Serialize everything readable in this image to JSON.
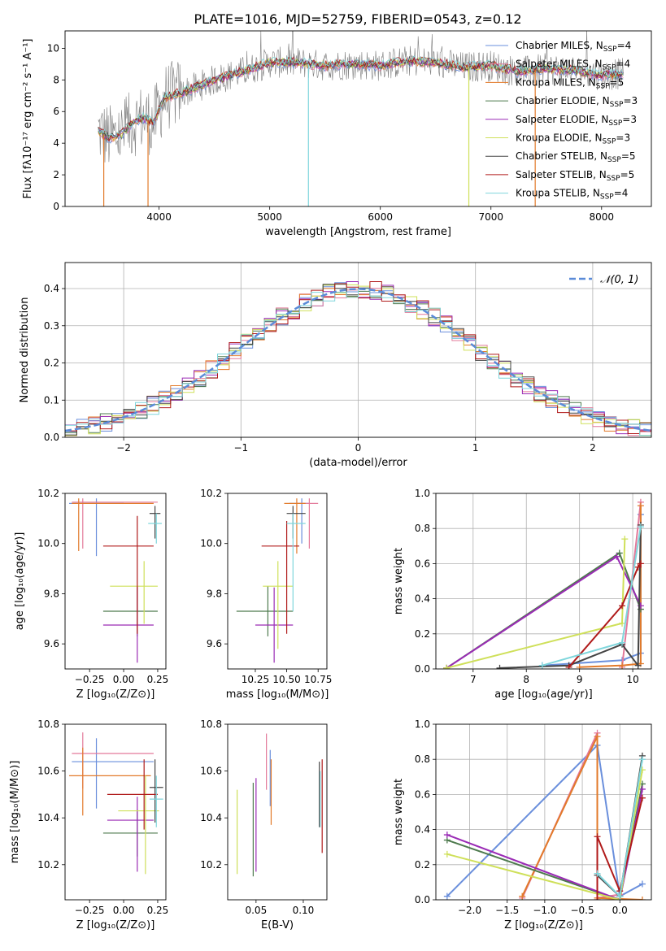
{
  "figure_title": "PLATE=1016, MJD=52759, FIBERID=0543, z=0.12",
  "colors": {
    "Chabrier MILES": "#6a8fdc",
    "Salpeter MILES": "#e3799a",
    "Kroupa MILES": "#e27a2a",
    "Chabrier ELODIE": "#4e7a4e",
    "Salpeter ELODIE": "#9a2bb5",
    "Kroupa ELODIE": "#cfe05a",
    "Chabrier STELIB": "#444444",
    "Salpeter STELIB": "#b01a1a",
    "Kroupa STELIB": "#7fd6dc",
    "data": "#7f7f7f",
    "normal": "#5b8bd8"
  },
  "chart_data": [
    {
      "id": "spectrum",
      "type": "line",
      "title": "PLATE=1016, MJD=52759, FIBERID=0543, z=0.12",
      "xlabel": "wavelength [Angstrom, rest frame]",
      "ylabel": "Flux [fλ10⁻¹⁷ erg cm⁻² s⁻¹ A⁻¹]",
      "xlim": [
        3150,
        8450
      ],
      "ylim": [
        0,
        11.1
      ],
      "xticks": [
        4000,
        5000,
        6000,
        7000,
        8000
      ],
      "yticks": [
        0,
        2,
        4,
        6,
        8,
        10
      ],
      "grid": false,
      "legend": "upper-right",
      "legend_entries": [
        {
          "main": "Chabrier MILES, N",
          "sub": "SSP",
          "tail": "=4"
        },
        {
          "main": "Salpeter MILES, N",
          "sub": "SSP",
          "tail": "=4"
        },
        {
          "main": "Kroupa MILES, N",
          "sub": "SSP",
          "tail": "=5"
        },
        {
          "main": "Chabrier ELODIE, N",
          "sub": "SSP",
          "tail": "=3"
        },
        {
          "main": "Salpeter ELODIE, N",
          "sub": "SSP",
          "tail": "=3"
        },
        {
          "main": "Kroupa ELODIE, N",
          "sub": "SSP",
          "tail": "=3"
        },
        {
          "main": "Chabrier STELIB, N",
          "sub": "SSP",
          "tail": "=5"
        },
        {
          "main": "Salpeter STELIB, N",
          "sub": "SSP",
          "tail": "=5"
        },
        {
          "main": "Kroupa STELIB, N",
          "sub": "SSP",
          "tail": "=4"
        }
      ],
      "continuum": {
        "x": [
          3450,
          3550,
          3650,
          3750,
          3850,
          3950,
          4050,
          4250,
          4500,
          4750,
          5000,
          5250,
          5500,
          5750,
          6000,
          6250,
          6500,
          6750,
          7000,
          7250,
          7500,
          7750,
          8000,
          8200
        ],
        "y": [
          4.8,
          4.3,
          4.5,
          5.2,
          5.6,
          5.3,
          6.9,
          7.3,
          8.0,
          8.5,
          9.1,
          9.1,
          8.9,
          9.0,
          8.9,
          9.2,
          9.1,
          8.8,
          8.9,
          8.5,
          8.7,
          8.6,
          8.3,
          8.4
        ]
      }
    },
    {
      "id": "residuals",
      "type": "histogram",
      "xlabel": "(data-model)/error",
      "ylabel": "Normed distribution",
      "xlim": [
        -2.5,
        2.5
      ],
      "ylim": [
        0,
        0.47
      ],
      "xticks": [
        -2,
        -1,
        0,
        1,
        2
      ],
      "yticks": [
        0.0,
        0.1,
        0.2,
        0.3,
        0.4
      ],
      "grid": true,
      "legend": "upper-right",
      "normal_label": "𝒩(0, 1)",
      "bin_width": 0.1
    },
    {
      "id": "age-vs-Z",
      "type": "errorbar",
      "xlabel": "Z [log₁₀(Z/Z⊙)]",
      "ylabel": "age  [log₁₀(age/yr)]",
      "xlim": [
        -0.43,
        0.31
      ],
      "ylim": [
        9.5,
        10.2
      ],
      "xticks": [
        -0.25,
        0.0,
        0.25
      ],
      "yticks": [
        9.6,
        9.8,
        10.0,
        10.2
      ],
      "points": [
        {
          "model": "Chabrier MILES",
          "x": -0.2,
          "xerr": [
            0.2,
            0.2
          ],
          "y": 10.16,
          "yerr": [
            0.21,
            0.02
          ]
        },
        {
          "model": "Salpeter MILES",
          "x": -0.3,
          "xerr": [
            0.08,
            0.55
          ],
          "y": 10.165,
          "yerr": [
            0.185,
            0.015
          ]
        },
        {
          "model": "Kroupa MILES",
          "x": -0.33,
          "xerr": [
            0.05,
            0.55
          ],
          "y": 10.16,
          "yerr": [
            0.19,
            0.02
          ]
        },
        {
          "model": "Chabrier ELODIE",
          "x": 0.1,
          "xerr": [
            0.25,
            0.15
          ],
          "y": 9.73,
          "yerr": [
            0.1,
            0.1
          ]
        },
        {
          "model": "Salpeter ELODIE",
          "x": 0.1,
          "xerr": [
            0.25,
            0.12
          ],
          "y": 9.675,
          "yerr": [
            0.15,
            0.15
          ]
        },
        {
          "model": "Kroupa ELODIE",
          "x": 0.15,
          "xerr": [
            0.25,
            0.1
          ],
          "y": 9.83,
          "yerr": [
            0.15,
            0.1
          ]
        },
        {
          "model": "Chabrier STELIB",
          "x": 0.23,
          "xerr": [
            0.04,
            0.04
          ],
          "y": 10.12,
          "yerr": [
            0.1,
            0.03
          ]
        },
        {
          "model": "Salpeter STELIB",
          "x": 0.1,
          "xerr": [
            0.25,
            0.12
          ],
          "y": 9.99,
          "yerr": [
            0.35,
            0.12
          ]
        },
        {
          "model": "Kroupa STELIB",
          "x": 0.24,
          "xerr": [
            0.06,
            0.04
          ],
          "y": 10.08,
          "yerr": [
            0.08,
            0.04
          ]
        }
      ]
    },
    {
      "id": "age-vs-mass",
      "type": "errorbar",
      "xlabel": "mass [log₁₀(M/M⊙)]",
      "ylabel": "",
      "xlim": [
        10.03,
        10.82
      ],
      "ylim": [
        9.5,
        10.2
      ],
      "xticks": [
        10.25,
        10.5,
        10.75
      ],
      "yticks": [
        9.6,
        9.8,
        10.0,
        10.2
      ],
      "points": [
        {
          "model": "Chabrier MILES",
          "x": 10.62,
          "xerr": [
            0.1,
            0.06
          ],
          "y": 10.16,
          "yerr": [
            0.16,
            0.02
          ]
        },
        {
          "model": "Salpeter MILES",
          "x": 10.68,
          "xerr": [
            0.1,
            0.07
          ],
          "y": 10.16,
          "yerr": [
            0.18,
            0.02
          ]
        },
        {
          "model": "Kroupa MILES",
          "x": 10.58,
          "xerr": [
            0.1,
            0.07
          ],
          "y": 10.16,
          "yerr": [
            0.2,
            0.02
          ]
        },
        {
          "model": "Chabrier ELODIE",
          "x": 10.35,
          "xerr": [
            0.25,
            0.2
          ],
          "y": 9.73,
          "yerr": [
            0.1,
            0.1
          ]
        },
        {
          "model": "Salpeter ELODIE",
          "x": 10.4,
          "xerr": [
            0.15,
            0.15
          ],
          "y": 9.675,
          "yerr": [
            0.15,
            0.15
          ]
        },
        {
          "model": "Kroupa ELODIE",
          "x": 10.43,
          "xerr": [
            0.12,
            0.12
          ],
          "y": 9.83,
          "yerr": [
            0.25,
            0.1
          ]
        },
        {
          "model": "Chabrier STELIB",
          "x": 10.55,
          "xerr": [
            0.05,
            0.1
          ],
          "y": 10.12,
          "yerr": [
            0.1,
            0.03
          ]
        },
        {
          "model": "Salpeter STELIB",
          "x": 10.5,
          "xerr": [
            0.2,
            0.1
          ],
          "y": 9.99,
          "yerr": [
            0.35,
            0.1
          ]
        },
        {
          "model": "Kroupa STELIB",
          "x": 10.55,
          "xerr": [
            0.05,
            0.1
          ],
          "y": 10.08,
          "yerr": [
            0.35,
            0.04
          ]
        }
      ]
    },
    {
      "id": "weight-vs-age",
      "type": "line",
      "xlabel": "age  [log₁₀(age/yr)]",
      "ylabel": "mass weight",
      "xlim": [
        6.3,
        10.35
      ],
      "ylim": [
        0,
        1.0
      ],
      "xticks": [
        7,
        8,
        9,
        10
      ],
      "yticks": [
        0.0,
        0.2,
        0.4,
        0.6,
        0.8,
        1.0
      ],
      "grid": true,
      "series": [
        {
          "model": "Chabrier MILES",
          "x": [
            8.3,
            9.8,
            10.15,
            10.15
          ],
          "y": [
            0.02,
            0.05,
            0.09,
            0.88
          ]
        },
        {
          "model": "Salpeter MILES",
          "x": [
            9.8,
            10.15
          ],
          "y": [
            0.01,
            0.95
          ]
        },
        {
          "model": "Kroupa MILES",
          "x": [
            9.0,
            9.8,
            10.15,
            10.15
          ],
          "y": [
            0.01,
            0.02,
            0.03,
            0.93
          ]
        },
        {
          "model": "Chabrier ELODIE",
          "x": [
            6.5,
            9.75,
            10.15
          ],
          "y": [
            0.005,
            0.66,
            0.34
          ]
        },
        {
          "model": "Salpeter ELODIE",
          "x": [
            6.5,
            9.7,
            10.15
          ],
          "y": [
            0.005,
            0.64,
            0.36
          ]
        },
        {
          "model": "Kroupa ELODIE",
          "x": [
            6.5,
            9.8,
            9.85
          ],
          "y": [
            0.005,
            0.26,
            0.74
          ]
        },
        {
          "model": "Chabrier STELIB",
          "x": [
            7.5,
            8.8,
            9.8,
            10.1,
            10.15
          ],
          "y": [
            0.005,
            0.02,
            0.14,
            0.02,
            0.82
          ]
        },
        {
          "model": "Salpeter STELIB",
          "x": [
            8.8,
            9.8,
            10.1,
            10.15
          ],
          "y": [
            0.01,
            0.36,
            0.58,
            0.6
          ]
        },
        {
          "model": "Kroupa STELIB",
          "x": [
            8.3,
            9.8,
            10.15
          ],
          "y": [
            0.02,
            0.15,
            0.81
          ]
        }
      ]
    },
    {
      "id": "mass-vs-Z",
      "type": "errorbar",
      "xlabel": "Z [log₁₀(Z/Z⊙)]",
      "ylabel": "mass [log₁₀(M/M⊙)]",
      "xlim": [
        -0.43,
        0.31
      ],
      "ylim": [
        10.05,
        10.8
      ],
      "xticks": [
        -0.25,
        0.0,
        0.25
      ],
      "yticks": [
        10.2,
        10.4,
        10.6,
        10.8
      ],
      "points": [
        {
          "model": "Chabrier MILES",
          "x": -0.2,
          "xerr": [
            0.18,
            0.42
          ],
          "y": 10.64,
          "yerr": [
            0.2,
            0.1
          ]
        },
        {
          "model": "Salpeter MILES",
          "x": -0.3,
          "xerr": [
            0.08,
            0.52
          ],
          "y": 10.675,
          "yerr": [
            0.15,
            0.09
          ]
        },
        {
          "model": "Kroupa MILES",
          "x": -0.3,
          "xerr": [
            0.1,
            0.5
          ],
          "y": 10.58,
          "yerr": [
            0.17,
            0.12
          ]
        },
        {
          "model": "Chabrier ELODIE",
          "x": 0.1,
          "xerr": [
            0.25,
            0.15
          ],
          "y": 10.335,
          "yerr": [
            0.1,
            0.1
          ]
        },
        {
          "model": "Salpeter ELODIE",
          "x": 0.1,
          "xerr": [
            0.22,
            0.12
          ],
          "y": 10.39,
          "yerr": [
            0.22,
            0.1
          ]
        },
        {
          "model": "Kroupa ELODIE",
          "x": 0.16,
          "xerr": [
            0.2,
            0.1
          ],
          "y": 10.43,
          "yerr": [
            0.27,
            0.15
          ]
        },
        {
          "model": "Chabrier STELIB",
          "x": 0.23,
          "xerr": [
            0.04,
            0.06
          ],
          "y": 10.53,
          "yerr": [
            0.15,
            0.12
          ]
        },
        {
          "model": "Salpeter STELIB",
          "x": 0.15,
          "xerr": [
            0.27,
            0.1
          ],
          "y": 10.5,
          "yerr": [
            0.15,
            0.15
          ]
        },
        {
          "model": "Kroupa STELIB",
          "x": 0.24,
          "xerr": [
            0.05,
            0.05
          ],
          "y": 10.48,
          "yerr": [
            0.12,
            0.1
          ]
        }
      ]
    },
    {
      "id": "mass-vs-EBV",
      "type": "errorbar",
      "xlabel": "E(B-V)",
      "ylabel": "",
      "xlim": [
        0.02,
        0.125
      ],
      "ylim": [
        10.05,
        10.8
      ],
      "xticks": [
        0.05,
        0.1
      ],
      "yticks": [
        10.2,
        10.4,
        10.6,
        10.8
      ],
      "points": [
        {
          "model": "Chabrier MILES",
          "x": 0.065,
          "yerr": [
            0.12,
            0.12
          ],
          "y": 10.57
        },
        {
          "model": "Salpeter MILES",
          "x": 0.061,
          "yerr": [
            0.14,
            0.1
          ],
          "y": 10.66
        },
        {
          "model": "Kroupa MILES",
          "x": 0.066,
          "yerr": [
            0.18,
            0.1
          ],
          "y": 10.55
        },
        {
          "model": "Chabrier ELODIE",
          "x": 0.047,
          "yerr": [
            0.2,
            0.2
          ],
          "y": 10.35
        },
        {
          "model": "Salpeter ELODIE",
          "x": 0.05,
          "yerr": [
            0.2,
            0.2
          ],
          "y": 10.37
        },
        {
          "model": "Kroupa ELODIE",
          "x": 0.03,
          "yerr": [
            0.18,
            0.18
          ],
          "y": 10.34
        },
        {
          "model": "Chabrier STELIB",
          "x": 0.117,
          "yerr": [
            0.14,
            0.14
          ],
          "y": 10.5
        },
        {
          "model": "Salpeter STELIB",
          "x": 0.12,
          "yerr": [
            0.2,
            0.2
          ],
          "y": 10.45
        },
        {
          "model": "Kroupa STELIB",
          "x": 0.118,
          "yerr": [
            0.12,
            0.12
          ],
          "y": 10.48
        }
      ]
    },
    {
      "id": "weight-vs-Z",
      "type": "line",
      "xlabel": "Z [log₁₀(Z/Z⊙)]",
      "ylabel": "mass weight",
      "xlim": [
        -2.45,
        0.42
      ],
      "ylim": [
        0,
        1.0
      ],
      "xticks": [
        -2.0,
        -1.5,
        -1.0,
        -0.5,
        0.0
      ],
      "yticks": [
        0.0,
        0.2,
        0.4,
        0.6,
        0.8,
        1.0
      ],
      "grid": true,
      "series": [
        {
          "model": "Chabrier MILES",
          "x": [
            -2.3,
            -0.3,
            0.0,
            0.3
          ],
          "y": [
            0.02,
            0.88,
            0.02,
            0.09
          ]
        },
        {
          "model": "Salpeter MILES",
          "x": [
            -1.3,
            -0.3,
            -0.3,
            0.0
          ],
          "y": [
            0.01,
            0.95,
            0.01,
            0.03
          ]
        },
        {
          "model": "Kroupa MILES",
          "x": [
            -1.3,
            -0.3,
            -0.3,
            0.3
          ],
          "y": [
            0.02,
            0.93,
            0.01,
            0.0
          ]
        },
        {
          "model": "Chabrier ELODIE",
          "x": [
            -2.3,
            0.0,
            0.3
          ],
          "y": [
            0.34,
            0.0,
            0.66
          ]
        },
        {
          "model": "Salpeter ELODIE",
          "x": [
            -2.3,
            0.0,
            0.3
          ],
          "y": [
            0.37,
            0.0,
            0.63
          ]
        },
        {
          "model": "Kroupa ELODIE",
          "x": [
            -2.3,
            0.0,
            0.3
          ],
          "y": [
            0.26,
            0.0,
            0.74
          ]
        },
        {
          "model": "Chabrier STELIB",
          "x": [
            -0.3,
            0.0,
            0.3
          ],
          "y": [
            0.14,
            0.02,
            0.82
          ]
        },
        {
          "model": "Salpeter STELIB",
          "x": [
            -0.3,
            -0.3,
            0.0,
            0.3
          ],
          "y": [
            0.0,
            0.36,
            0.05,
            0.58
          ]
        },
        {
          "model": "Kroupa STELIB",
          "x": [
            -0.3,
            0.0,
            0.3
          ],
          "y": [
            0.15,
            0.02,
            0.8
          ]
        }
      ]
    }
  ]
}
